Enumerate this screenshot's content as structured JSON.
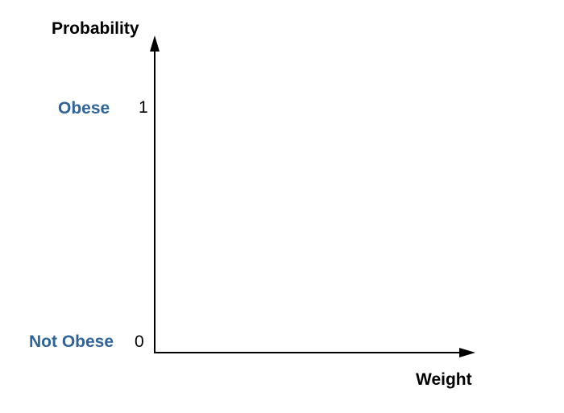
{
  "y_axis": {
    "title": "Probability",
    "ticks": [
      {
        "value": "1",
        "class_label": "Obese"
      },
      {
        "value": "0",
        "class_label": "Not Obese"
      }
    ]
  },
  "x_axis": {
    "title": "Weight"
  },
  "colors": {
    "axis": "#000000",
    "class_label": "#2f6399"
  }
}
